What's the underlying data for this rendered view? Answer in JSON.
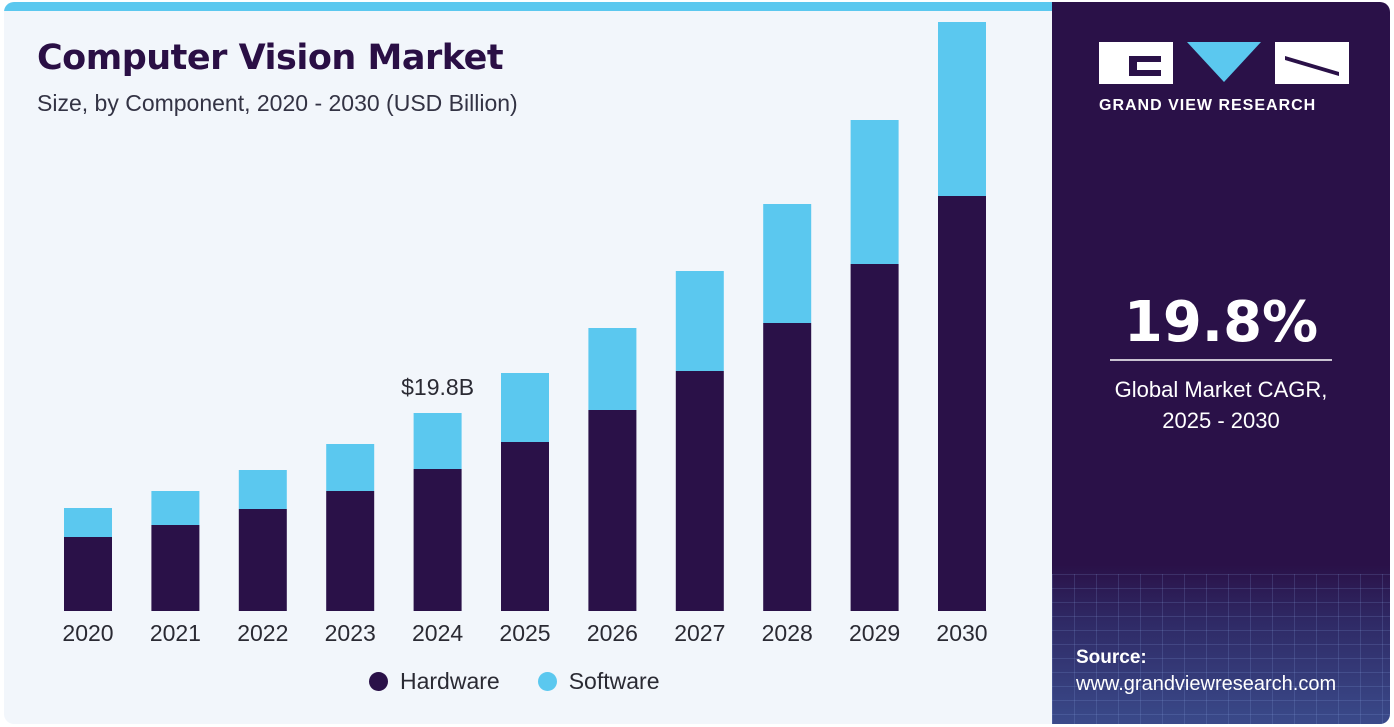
{
  "header": {
    "title": "Computer Vision Market",
    "subtitle": "Size, by Component, 2020 - 2030 (USD Billion)"
  },
  "chart_data": {
    "type": "bar",
    "stacked": true,
    "categories": [
      "2020",
      "2021",
      "2022",
      "2023",
      "2024",
      "2025",
      "2026",
      "2027",
      "2028",
      "2029",
      "2030"
    ],
    "series": [
      {
        "name": "Hardware",
        "color": "#2a1148",
        "values": [
          7.4,
          8.6,
          10.2,
          12.0,
          14.2,
          16.9,
          20.1,
          24.0,
          28.8,
          34.7,
          41.5
        ]
      },
      {
        "name": "Software",
        "color": "#5bc8ef",
        "values": [
          2.9,
          3.4,
          3.9,
          4.7,
          5.6,
          6.9,
          8.2,
          10.0,
          11.9,
          14.4,
          17.4
        ]
      }
    ],
    "annotations": [
      {
        "category": "2024",
        "label": "$19.8B"
      }
    ],
    "ylim": [
      0,
      60
    ],
    "legend_position": "bottom"
  },
  "legend": {
    "hardware": "Hardware",
    "software": "Software"
  },
  "side_panel": {
    "logo_text": "GRAND VIEW RESEARCH",
    "cagr_value": "19.8%",
    "cagr_label_line1": "Global Market CAGR,",
    "cagr_label_line2": "2025 - 2030",
    "source_label": "Source:",
    "source_url": "www.grandviewresearch.com"
  },
  "colors": {
    "primary": "#2a1148",
    "accent": "#5bc8ef"
  }
}
